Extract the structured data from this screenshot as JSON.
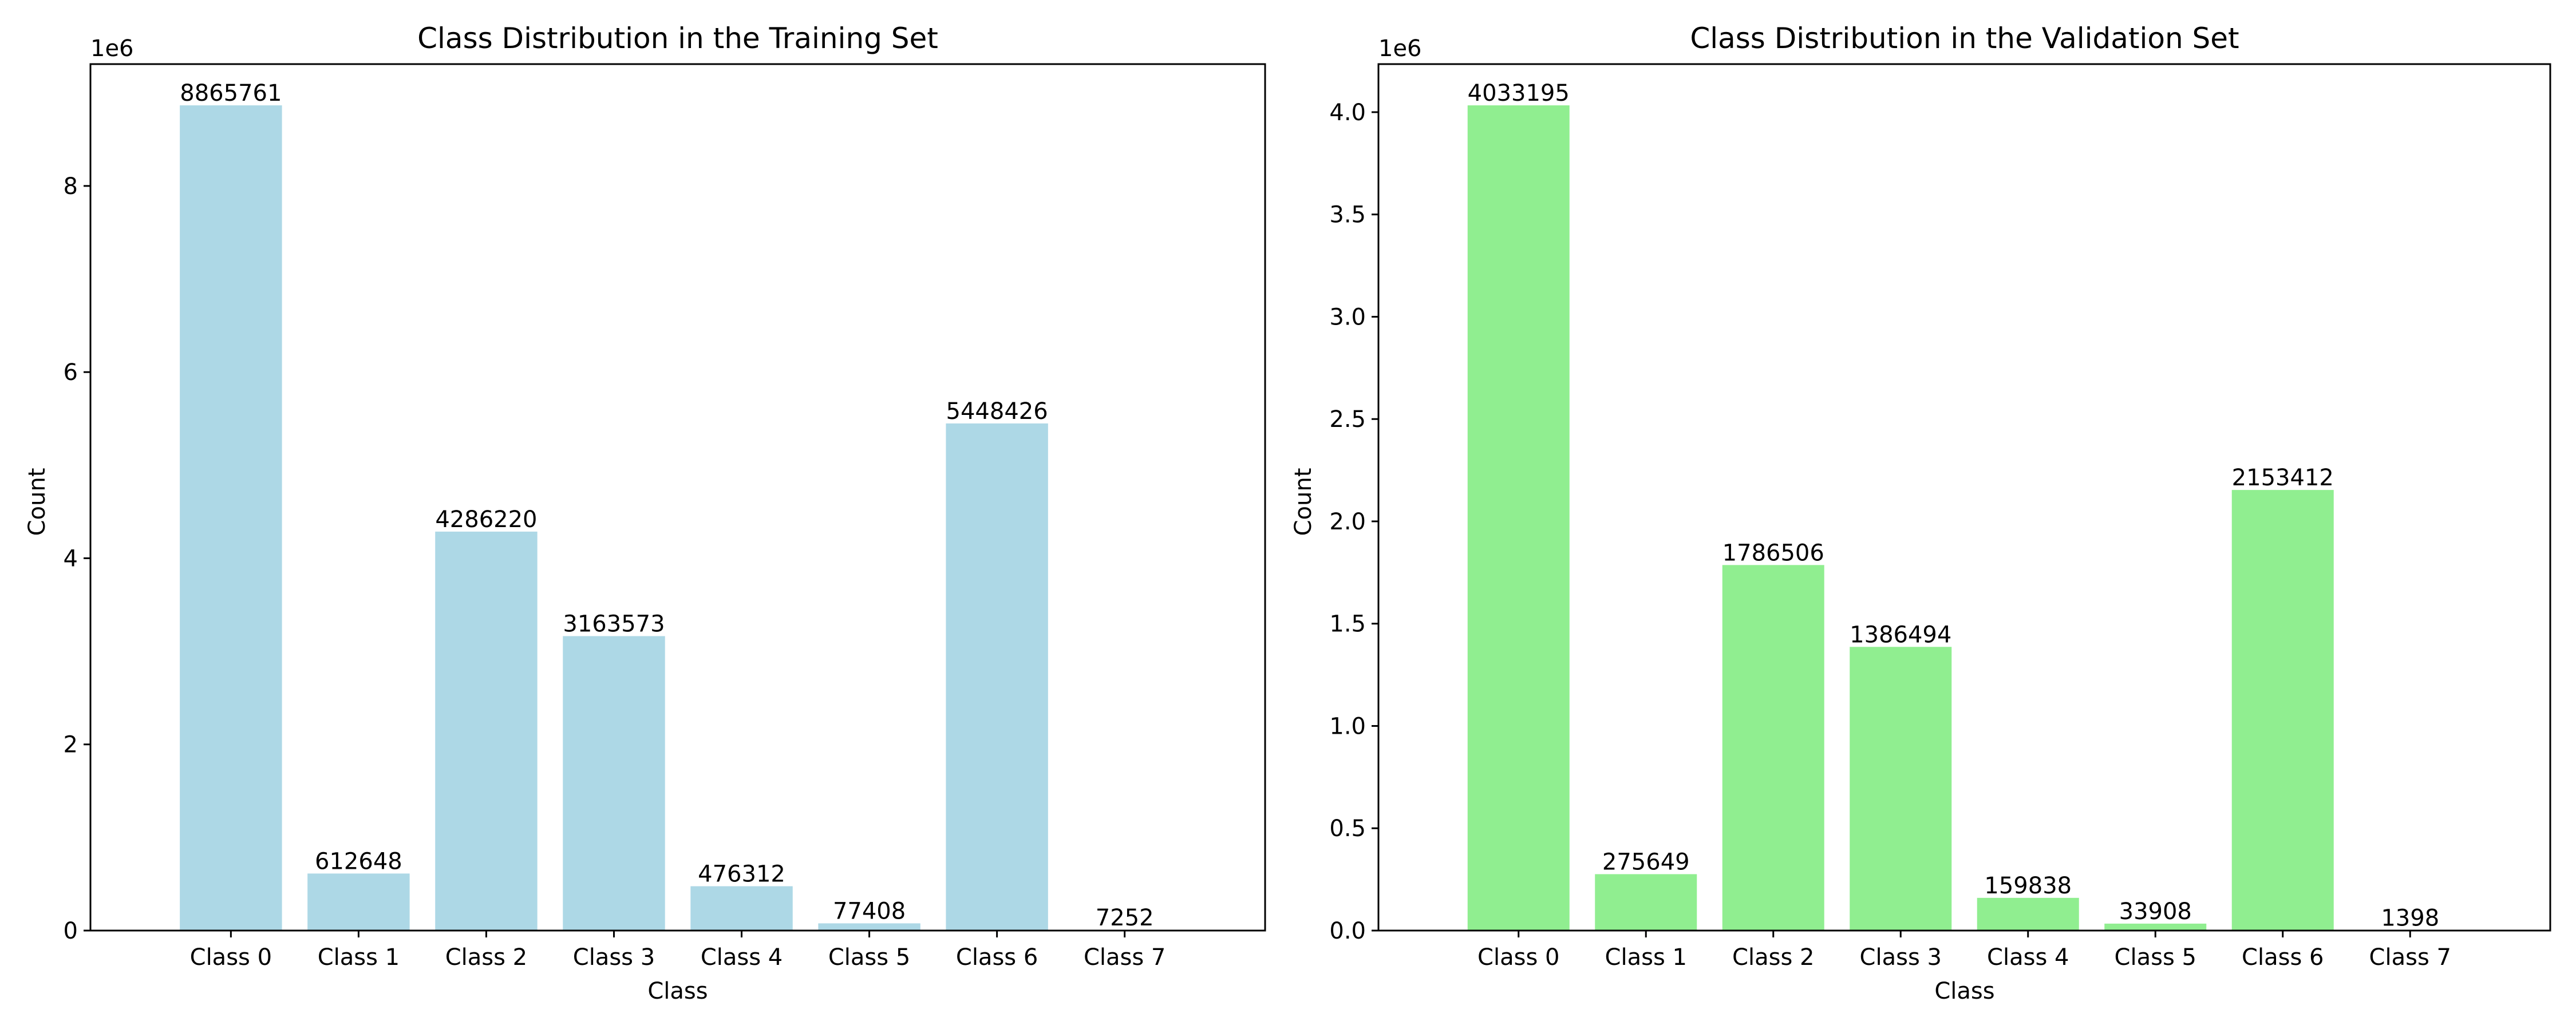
{
  "chart_data": [
    {
      "type": "bar",
      "title": "Class Distribution in the Training Set",
      "xlabel": "Class",
      "ylabel": "Count",
      "offset_text": "1e6",
      "categories": [
        "Class 0",
        "Class 1",
        "Class 2",
        "Class 3",
        "Class 4",
        "Class 5",
        "Class 6",
        "Class 7"
      ],
      "values": [
        8865761,
        612648,
        4286220,
        3163573,
        476312,
        77408,
        5448426,
        7252
      ],
      "bar_labels": [
        "8865761",
        "612648",
        "4286220",
        "3163573",
        "476312",
        "77408",
        "5448426",
        "7252"
      ],
      "ylim": [
        0,
        9309049
      ],
      "yticks": [
        0,
        2000000,
        4000000,
        6000000,
        8000000
      ],
      "ytick_labels": [
        "0",
        "2",
        "4",
        "6",
        "8"
      ],
      "bar_color": "#add8e6",
      "grid": false
    },
    {
      "type": "bar",
      "title": "Class Distribution in the Validation Set",
      "xlabel": "Class",
      "ylabel": "Count",
      "offset_text": "1e6",
      "categories": [
        "Class 0",
        "Class 1",
        "Class 2",
        "Class 3",
        "Class 4",
        "Class 5",
        "Class 6",
        "Class 7"
      ],
      "values": [
        4033195,
        275649,
        1786506,
        1386494,
        159838,
        33908,
        2153412,
        1398
      ],
      "bar_labels": [
        "4033195",
        "275649",
        "1786506",
        "1386494",
        "159838",
        "33908",
        "2153412",
        "1398"
      ],
      "ylim": [
        0,
        4234855
      ],
      "yticks": [
        0,
        500000,
        1000000,
        1500000,
        2000000,
        2500000,
        3000000,
        3500000,
        4000000
      ],
      "ytick_labels": [
        "0.0",
        "0.5",
        "1.0",
        "1.5",
        "2.0",
        "2.5",
        "3.0",
        "3.5",
        "4.0"
      ],
      "bar_color": "#90ee90",
      "grid": false
    }
  ]
}
